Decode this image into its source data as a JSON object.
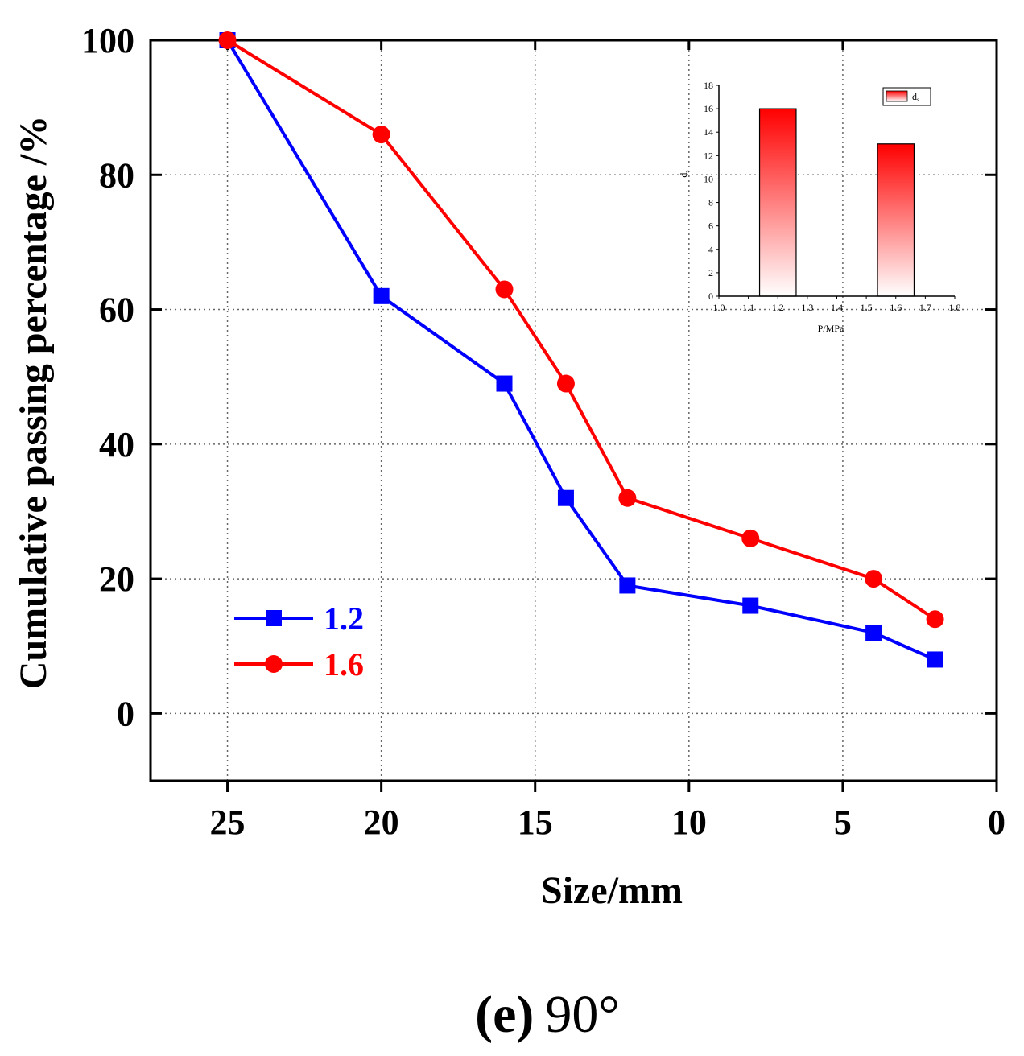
{
  "chart_data": [
    {
      "type": "line",
      "xlabel": "Size/mm",
      "ylabel": "Cumulative passing percentage /%",
      "xlim": [
        27.5,
        0
      ],
      "ylim": [
        -10,
        100
      ],
      "x_ticks": [
        25,
        20,
        15,
        10,
        5,
        0
      ],
      "y_ticks": [
        0,
        20,
        40,
        60,
        80,
        100
      ],
      "x_reversed": true,
      "grid": true,
      "legend_position": "bottom-left",
      "series": [
        {
          "name": "1.2",
          "color": "#0000ff",
          "marker": "square",
          "x": [
            25,
            20,
            16,
            14,
            12,
            8,
            4,
            2
          ],
          "y": [
            100,
            62,
            49,
            32,
            19,
            16,
            12,
            8
          ]
        },
        {
          "name": "1.6",
          "color": "#ff0000",
          "marker": "circle",
          "x": [
            25,
            20,
            16,
            14,
            12,
            8,
            4,
            2
          ],
          "y": [
            100,
            86,
            63,
            49,
            32,
            26,
            20,
            14
          ]
        }
      ]
    },
    {
      "type": "bar",
      "xlabel": "P/MPa",
      "ylabel": "d",
      "ylabel_sub": "s",
      "xlim": [
        1.0,
        1.8
      ],
      "ylim": [
        0,
        18
      ],
      "x_ticks": [
        "1.0",
        "1.1",
        "1.2",
        "1.3",
        "1.4",
        "1.5",
        "1.6",
        "1.7",
        "1.8"
      ],
      "y_ticks": [
        0,
        2,
        4,
        6,
        8,
        10,
        12,
        14,
        16,
        18
      ],
      "legend": "d",
      "legend_sub": "s",
      "legend_position": "top-right",
      "color": "#ff0000",
      "x": [
        1.2,
        1.6
      ],
      "values": [
        16,
        13
      ]
    }
  ],
  "caption": {
    "letter": "(e)",
    "angle": "90°"
  }
}
